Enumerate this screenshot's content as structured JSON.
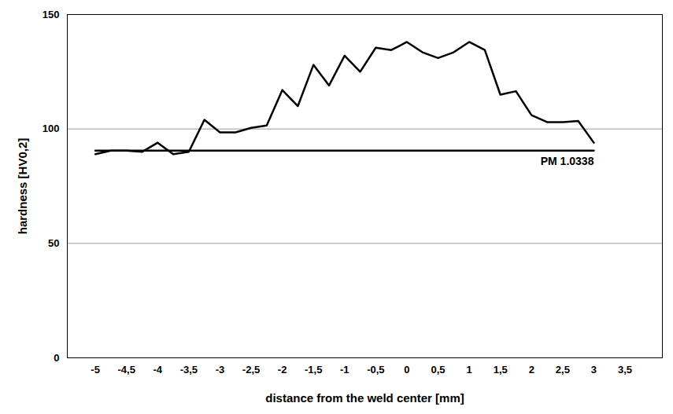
{
  "chart_data": {
    "type": "line",
    "x_label": "distance from the weld center [mm]",
    "y_label": "hardness [HV0,2]",
    "x": [
      -5,
      -4.75,
      -4.5,
      -4.25,
      -4,
      -3.75,
      -3.5,
      -3.25,
      -3,
      -2.75,
      -2.5,
      -2.25,
      -2,
      -1.75,
      -1.5,
      -1.25,
      -1,
      -0.75,
      -0.5,
      -0.25,
      0,
      0.25,
      0.5,
      0.75,
      1,
      1.25,
      1.5,
      1.75,
      2,
      2.25,
      2.5,
      2.75,
      3
    ],
    "series": [
      {
        "color": "#000000",
        "values": [
          89,
          90.5,
          90.5,
          90,
          94,
          89,
          90,
          104,
          98.5,
          98.5,
          100.5,
          101.5,
          117,
          110,
          128,
          119,
          132,
          125,
          135.5,
          134.5,
          138,
          133.5,
          131,
          133.5,
          138,
          134.5,
          115,
          116.5,
          106,
          103,
          103,
          103.5,
          94
        ]
      },
      {
        "name": "PM 1.0338",
        "color": "#000000",
        "values": [
          90.5,
          90.5,
          90.5,
          90.5,
          90.5,
          90.5,
          90.5,
          90.5,
          90.5,
          90.5,
          90.5,
          90.5,
          90.5,
          90.5,
          90.5,
          90.5,
          90.5,
          90.5,
          90.5,
          90.5,
          90.5,
          90.5,
          90.5,
          90.5,
          90.5,
          90.5,
          90.5,
          90.5,
          90.5,
          90.5,
          90.5,
          90.5,
          90.5
        ]
      }
    ],
    "xlim": [
      -5.45,
      4.1
    ],
    "xticks": [
      -5,
      {
        "value": -4.5,
        "label": "-4,5"
      },
      -4,
      {
        "value": -3.5,
        "label": "-3,5"
      },
      -3,
      {
        "value": -2.5,
        "label": "-2,5"
      },
      -2,
      {
        "value": -1.5,
        "label": "-1,5"
      },
      -1,
      {
        "value": -0.5,
        "label": "-0,5"
      },
      0,
      {
        "value": 0.5,
        "label": "0,5"
      },
      1,
      {
        "value": 1.5,
        "label": "1,5"
      },
      2,
      {
        "value": 2.5,
        "label": "2,5"
      },
      3,
      {
        "value": 3.5,
        "label": "3,5"
      }
    ],
    "ylim": [
      0,
      150
    ],
    "yticks": [
      0,
      50,
      100,
      150
    ],
    "grid": true
  }
}
